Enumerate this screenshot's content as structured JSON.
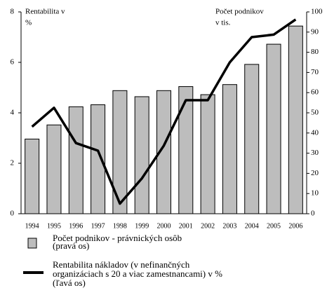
{
  "chart_data": {
    "type": "bar-line",
    "y_label": [
      "Rentabilita v",
      "%"
    ],
    "y2_label": [
      "Počet podnikov",
      "v tis."
    ],
    "categories": [
      "1994",
      "1995",
      "1996",
      "1997",
      "1998",
      "1999",
      "2000",
      "2001",
      "2002",
      "2003",
      "2004",
      "2005",
      "2006"
    ],
    "series": [
      {
        "name": [
          "Počet podnikov - právnických osôb",
          "(pravá os)"
        ],
        "type": "bar",
        "axis": "y2",
        "color": "#bdbdbd",
        "values": [
          37,
          44,
          53,
          54,
          61,
          58,
          61,
          63,
          59,
          64,
          74,
          84,
          93
        ]
      },
      {
        "name": [
          "Rentabilita nákladov (v nefinančných",
          "organizáciach s 20 a viac zamestnancami) v %",
          "(ľavá os)"
        ],
        "type": "line",
        "axis": "y",
        "color": "#000000",
        "values": [
          3.45,
          4.2,
          2.8,
          2.5,
          0.4,
          1.4,
          2.7,
          4.5,
          4.5,
          6.0,
          7.0,
          7.1,
          7.7
        ]
      }
    ],
    "ylim": [
      0,
      8
    ],
    "yticks": [
      0,
      2,
      4,
      6,
      8
    ],
    "y2lim": [
      0,
      100
    ],
    "y2ticks": [
      0,
      10,
      20,
      30,
      40,
      50,
      60,
      70,
      80,
      90,
      100
    ]
  }
}
